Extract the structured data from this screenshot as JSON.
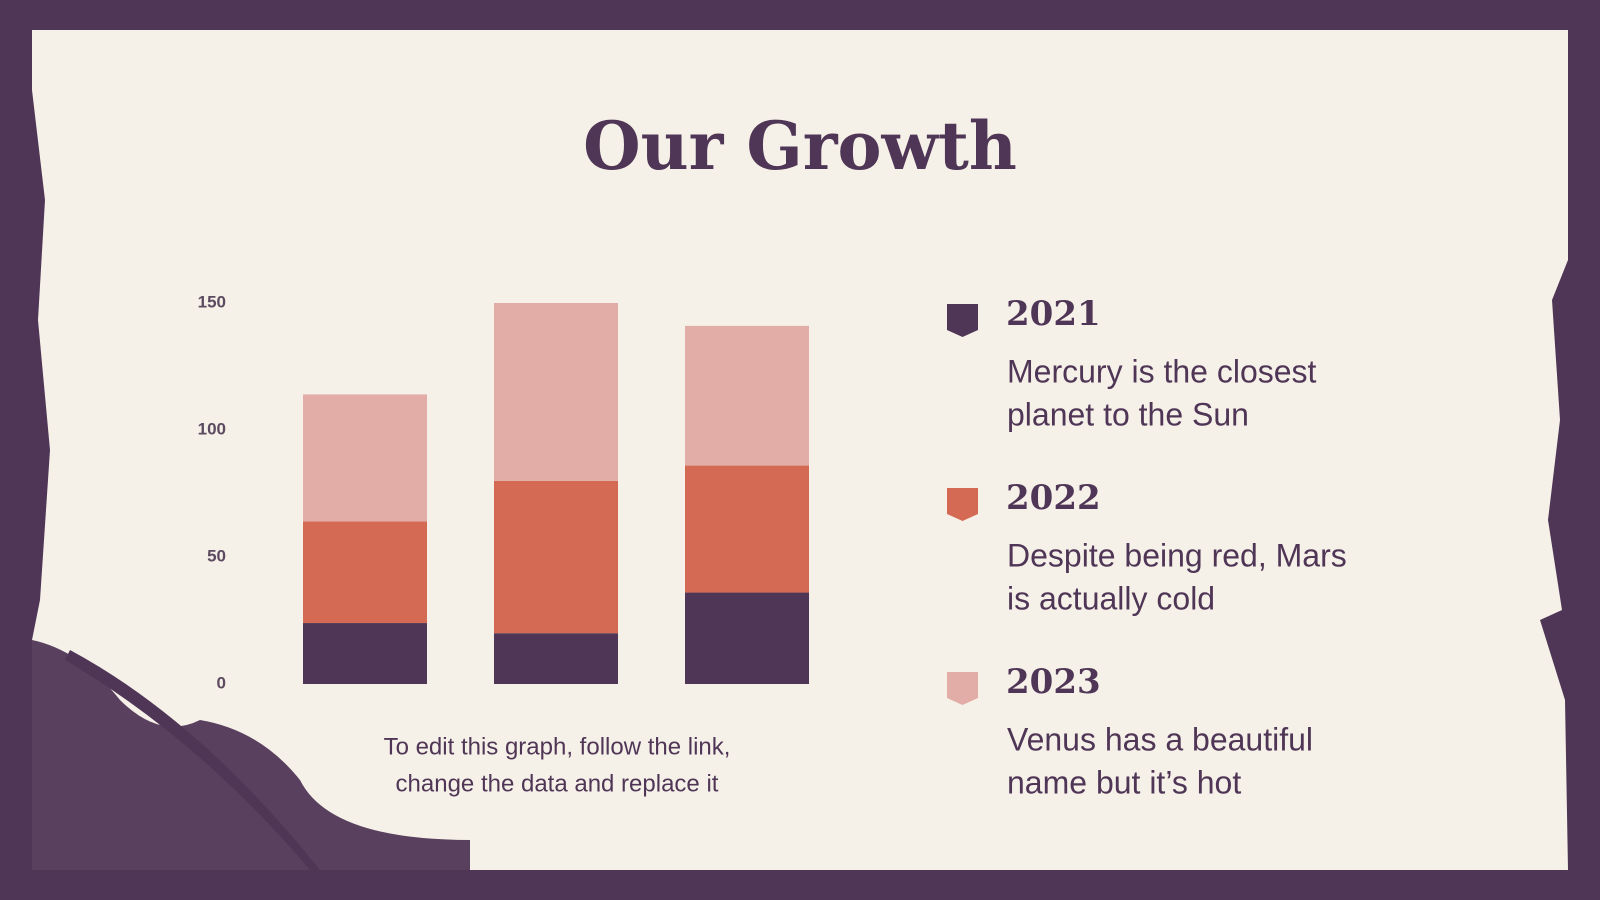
{
  "chart_data": {
    "type": "bar",
    "stacked": true,
    "title": "Our Growth",
    "categories": [
      null,
      null,
      null
    ],
    "series": [
      {
        "name": "2021",
        "color": "#4f3656",
        "values": [
          24,
          20,
          36
        ],
        "description": [
          "Mercury is the closest",
          "planet to the Sun"
        ]
      },
      {
        "name": "2022",
        "color": "#d46a54",
        "values": [
          40,
          60,
          50
        ],
        "description": [
          "Despite being red, Mars",
          "is actually cold"
        ]
      },
      {
        "name": "2023",
        "color": "#e2ada6",
        "values": [
          50,
          70,
          55
        ],
        "description": [
          "Venus has a beautiful",
          "name but it’s hot"
        ]
      }
    ],
    "ylim": [
      0,
      150
    ],
    "yticks": [
      0,
      50,
      100,
      150
    ],
    "grid": false,
    "note": [
      "To edit this graph, follow the link,",
      "change the data and replace it"
    ]
  }
}
